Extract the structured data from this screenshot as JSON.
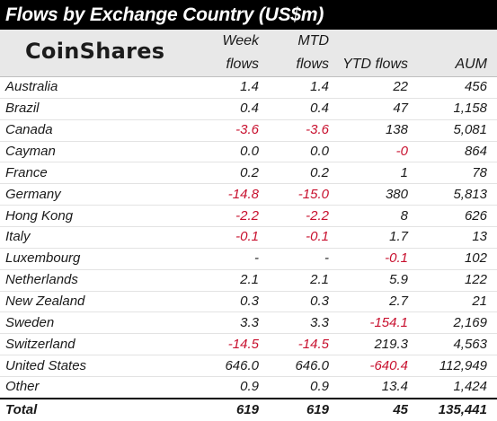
{
  "title": "Flows by Exchange Country (US$m)",
  "logo": "CoinShares",
  "header": {
    "week": [
      "Week",
      "flows"
    ],
    "mtd": [
      "MTD",
      "flows"
    ],
    "ytd": "YTD flows",
    "aum": "AUM"
  },
  "rows": [
    {
      "country": "Australia",
      "week": "1.4",
      "mtd": "1.4",
      "ytd": "22",
      "aum": "456"
    },
    {
      "country": "Brazil",
      "week": "0.4",
      "mtd": "0.4",
      "ytd": "47",
      "aum": "1,158"
    },
    {
      "country": "Canada",
      "week": "-3.6",
      "mtd": "-3.6",
      "ytd": "138",
      "aum": "5,081"
    },
    {
      "country": "Cayman",
      "week": "0.0",
      "mtd": "0.0",
      "ytd": "-0",
      "aum": "864"
    },
    {
      "country": "France",
      "week": "0.2",
      "mtd": "0.2",
      "ytd": "1",
      "aum": "78"
    },
    {
      "country": "Germany",
      "week": "-14.8",
      "mtd": "-15.0",
      "ytd": "380",
      "aum": "5,813"
    },
    {
      "country": "Hong Kong",
      "week": "-2.2",
      "mtd": "-2.2",
      "ytd": "8",
      "aum": "626"
    },
    {
      "country": "Italy",
      "week": "-0.1",
      "mtd": "-0.1",
      "ytd": "1.7",
      "aum": "13"
    },
    {
      "country": "Luxembourg",
      "week": "-",
      "mtd": "-",
      "ytd": "-0.1",
      "aum": "102"
    },
    {
      "country": "Netherlands",
      "week": "2.1",
      "mtd": "2.1",
      "ytd": "5.9",
      "aum": "122"
    },
    {
      "country": "New Zealand",
      "week": "0.3",
      "mtd": "0.3",
      "ytd": "2.7",
      "aum": "21"
    },
    {
      "country": "Sweden",
      "week": "3.3",
      "mtd": "3.3",
      "ytd": "-154.1",
      "aum": "2,169"
    },
    {
      "country": "Switzerland",
      "week": "-14.5",
      "mtd": "-14.5",
      "ytd": "219.3",
      "aum": "4,563"
    },
    {
      "country": "United States",
      "week": "646.0",
      "mtd": "646.0",
      "ytd": "-640.4",
      "aum": "112,949"
    },
    {
      "country": "Other",
      "week": "0.9",
      "mtd": "0.9",
      "ytd": "13.4",
      "aum": "1,424"
    }
  ],
  "total": {
    "country": "Total",
    "week": "619",
    "mtd": "619",
    "ytd": "45",
    "aum": "135,441"
  },
  "colors": {
    "negative": "#c8102e",
    "title_bg": "#000000",
    "header_bg": "#e8e8e8"
  }
}
